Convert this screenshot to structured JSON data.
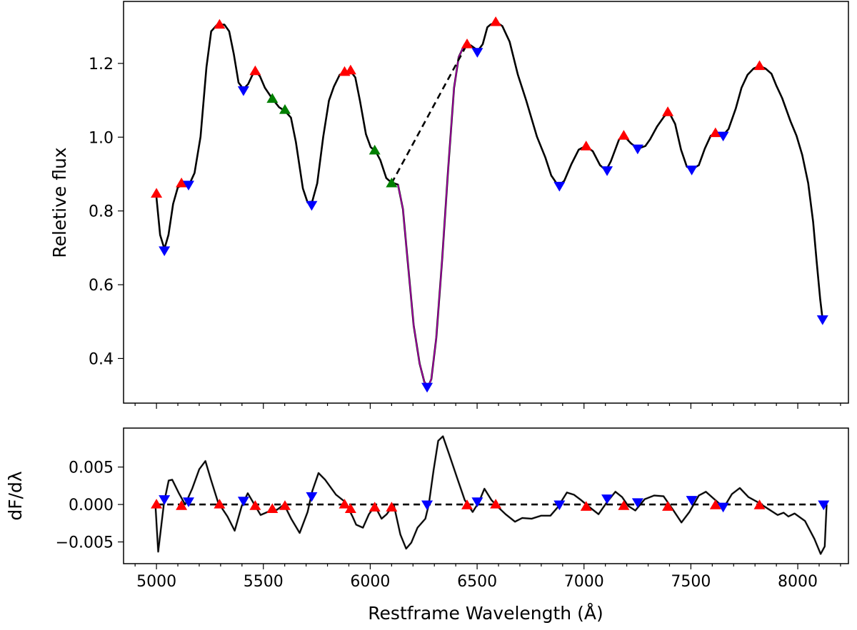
{
  "chart_data": [
    {
      "type": "line",
      "panel": "top",
      "title": "",
      "xlabel": "",
      "ylabel": "Reletive flux",
      "xlim": [
        4846,
        8237
      ],
      "ylim": [
        0.279,
        1.368
      ],
      "yticks": [
        0.4,
        0.6,
        0.8,
        1.0,
        1.2
      ],
      "ytick_labels": [
        "0.4",
        "0.6",
        "0.8",
        "1.0",
        "1.2"
      ],
      "grid": false,
      "colors": {
        "spectrum": "#000000",
        "feature_fit": "#bf00bf",
        "maxima": "#ff0000",
        "minima": "#0000ff",
        "pseudo_continuum": "#007f00"
      },
      "spectrum": {
        "x": [
          5000,
          5017,
          5037,
          5056,
          5078,
          5100,
          5128,
          5156,
          5178,
          5206,
          5234,
          5256,
          5284,
          5318,
          5340,
          5362,
          5384,
          5407,
          5429,
          5449,
          5468,
          5484,
          5507,
          5540,
          5574,
          5601,
          5629,
          5652,
          5685,
          5707,
          5729,
          5752,
          5780,
          5807,
          5830,
          5857,
          5880,
          5908,
          5930,
          5952,
          5980,
          6002,
          6025,
          6047,
          6075,
          6097,
          6130,
          6153,
          6175,
          6203,
          6231,
          6253,
          6270,
          6286,
          6309,
          6336,
          6364,
          6392,
          6414,
          6442,
          6470,
          6504,
          6526,
          6548,
          6562,
          6590,
          6618,
          6652,
          6691,
          6730,
          6780,
          6819,
          6847,
          6880,
          6908,
          6941,
          6975,
          7008,
          7041,
          7075,
          7103,
          7125,
          7164,
          7186,
          7220,
          7253,
          7287,
          7309,
          7342,
          7376,
          7398,
          7426,
          7454,
          7481,
          7504,
          7537,
          7565,
          7593,
          7621,
          7648,
          7676,
          7710,
          7737,
          7765,
          7793,
          7821,
          7849,
          7877,
          7899,
          7927,
          7966,
          7994,
          8021,
          8049,
          8072,
          8088,
          8105,
          8116
        ],
        "y": [
          0.836,
          0.735,
          0.697,
          0.735,
          0.819,
          0.864,
          0.871,
          0.875,
          0.903,
          1.001,
          1.19,
          1.287,
          1.305,
          1.305,
          1.287,
          1.224,
          1.148,
          1.13,
          1.144,
          1.169,
          1.176,
          1.165,
          1.134,
          1.106,
          1.081,
          1.071,
          1.053,
          0.987,
          0.861,
          0.823,
          0.826,
          0.875,
          1.001,
          1.099,
          1.137,
          1.169,
          1.176,
          1.179,
          1.162,
          1.099,
          1.008,
          0.973,
          0.962,
          0.938,
          0.889,
          0.878,
          0.871,
          0.805,
          0.665,
          0.49,
          0.386,
          0.337,
          0.323,
          0.344,
          0.456,
          0.665,
          0.91,
          1.134,
          1.217,
          1.252,
          1.249,
          1.235,
          1.252,
          1.298,
          1.305,
          1.312,
          1.301,
          1.259,
          1.169,
          1.099,
          1.001,
          0.945,
          0.896,
          0.868,
          0.882,
          0.927,
          0.966,
          0.976,
          0.962,
          0.924,
          0.91,
          0.934,
          0.994,
          1.004,
          0.983,
          0.969,
          0.976,
          0.994,
          1.029,
          1.057,
          1.067,
          1.036,
          0.966,
          0.92,
          0.913,
          0.924,
          0.969,
          1.004,
          1.011,
          1.004,
          1.022,
          1.078,
          1.134,
          1.169,
          1.186,
          1.193,
          1.186,
          1.172,
          1.141,
          1.106,
          1.043,
          1.004,
          0.952,
          0.875,
          0.77,
          0.665,
          0.56,
          0.506
        ]
      },
      "feature_fit_range": [
        6100,
        6453
      ],
      "pseudo_continuum": {
        "x": [
          6100,
          6453
        ],
        "y": [
          0.875,
          1.252
        ]
      },
      "maxima": {
        "x": [
          5000,
          5117,
          5295,
          5462,
          5880,
          5908,
          6453,
          6587,
          7010,
          7186,
          7392,
          7615,
          7821
        ],
        "y": [
          0.847,
          0.875,
          1.305,
          1.179,
          1.177,
          1.181,
          1.252,
          1.312,
          0.975,
          1.004,
          1.068,
          1.011,
          1.193
        ]
      },
      "minima": {
        "x": [
          5037,
          5150,
          5407,
          5726,
          6266,
          6501,
          6885,
          7108,
          7251,
          7504,
          7651,
          8116
        ],
        "y": [
          0.693,
          0.871,
          1.127,
          0.816,
          0.323,
          1.231,
          0.868,
          0.91,
          0.969,
          0.912,
          1.004,
          0.506
        ]
      },
      "continuum_points": {
        "x": [
          5542,
          5601,
          6021,
          6100
        ],
        "y": [
          1.104,
          1.074,
          0.964,
          0.875
        ]
      }
    },
    {
      "type": "line",
      "panel": "bottom",
      "title": "",
      "xlabel": "Restframe Wavelength (Å)",
      "ylabel": "dF/dλ",
      "xlim": [
        4846,
        8237
      ],
      "ylim": [
        -0.0079,
        0.0102
      ],
      "xticks": [
        5000,
        5500,
        6000,
        6500,
        7000,
        7500,
        8000
      ],
      "xtick_labels": [
        "5000",
        "5500",
        "6000",
        "6500",
        "7000",
        "7500",
        "8000"
      ],
      "yticks": [
        -0.005,
        0.0,
        0.005
      ],
      "ytick_labels": [
        "−0.005",
        "0.000",
        "0.005"
      ],
      "grid": false,
      "zero_line": 0,
      "derivative": {
        "x": [
          4995,
          5008,
          5035,
          5057,
          5074,
          5105,
          5134,
          5167,
          5200,
          5229,
          5255,
          5288,
          5332,
          5366,
          5399,
          5427,
          5458,
          5487,
          5520,
          5564,
          5597,
          5630,
          5670,
          5707,
          5729,
          5758,
          5789,
          5840,
          5884,
          5917,
          5934,
          5966,
          5994,
          6022,
          6053,
          6077,
          6110,
          6141,
          6168,
          6192,
          6221,
          6258,
          6274,
          6296,
          6318,
          6340,
          6369,
          6406,
          6442,
          6479,
          6508,
          6534,
          6567,
          6600,
          6633,
          6677,
          6711,
          6755,
          6799,
          6843,
          6876,
          6920,
          6953,
          6986,
          7019,
          7068,
          7107,
          7147,
          7178,
          7207,
          7240,
          7284,
          7328,
          7372,
          7416,
          7456,
          7493,
          7537,
          7570,
          7610,
          7654,
          7692,
          7729,
          7769,
          7813,
          7862,
          7906,
          7934,
          7956,
          7985,
          8034,
          8078,
          8107,
          8126,
          8135
        ],
        "y": [
          0,
          -0.0063,
          0.0002,
          0.0032,
          0.0033,
          0.0015,
          0,
          0.0021,
          0.0047,
          0.0058,
          0.0033,
          0.0003,
          -0.0016,
          -0.0035,
          -0.0002,
          0.0015,
          0,
          -0.0014,
          -0.001,
          -0.0007,
          0,
          -0.0019,
          -0.0038,
          -0.001,
          0.0018,
          0.0042,
          0.0033,
          0.0013,
          0.0003,
          -0.0016,
          -0.0027,
          -0.0031,
          -0.0013,
          -0.0002,
          -0.0019,
          -0.0013,
          0,
          -0.004,
          -0.0059,
          -0.0051,
          -0.0031,
          -0.0019,
          0,
          0.0045,
          0.0085,
          0.0091,
          0.0067,
          0.0036,
          0.0006,
          -0.001,
          0.0003,
          0.0021,
          0.0006,
          -0.0004,
          -0.0013,
          -0.0023,
          -0.0018,
          -0.0019,
          -0.0015,
          -0.0015,
          -0.0004,
          0.0016,
          0.0013,
          0.0006,
          -0.0002,
          -0.0013,
          0.0003,
          0.0017,
          0.001,
          -0.0002,
          -0.0008,
          0.0007,
          0.0012,
          0.0011,
          -0.0007,
          -0.0024,
          -0.001,
          0.0012,
          0.0017,
          0.0007,
          -0.0004,
          0.0014,
          0.0022,
          0.001,
          0.0003,
          -0.0006,
          -0.0014,
          -0.0011,
          -0.0016,
          -0.0012,
          -0.0022,
          -0.0046,
          -0.0066,
          -0.0056,
          0
        ]
      },
      "maxima": {
        "x": [
          5000,
          5117,
          5295,
          5462,
          5542,
          5601,
          5880,
          5908,
          6021,
          6100,
          6453,
          6587,
          7010,
          7186,
          7392,
          7615,
          7821
        ],
        "y": [
          0,
          -0.0002,
          0,
          -0.0002,
          -0.0006,
          -0.0002,
          0,
          -0.0006,
          -0.0004,
          -0.0004,
          -0.0001,
          0,
          -0.0003,
          -0.0002,
          -0.0003,
          -0.0001,
          -0.0001
        ]
      },
      "minima": {
        "x": [
          5037,
          5150,
          5407,
          5726,
          6266,
          6501,
          6885,
          7108,
          7251,
          7504,
          7651,
          8121
        ],
        "y": [
          0.0007,
          0.0004,
          0.0005,
          0.0011,
          0,
          0.0004,
          0,
          0.0008,
          0.0003,
          0.0006,
          -0.0003,
          0
        ]
      }
    }
  ]
}
